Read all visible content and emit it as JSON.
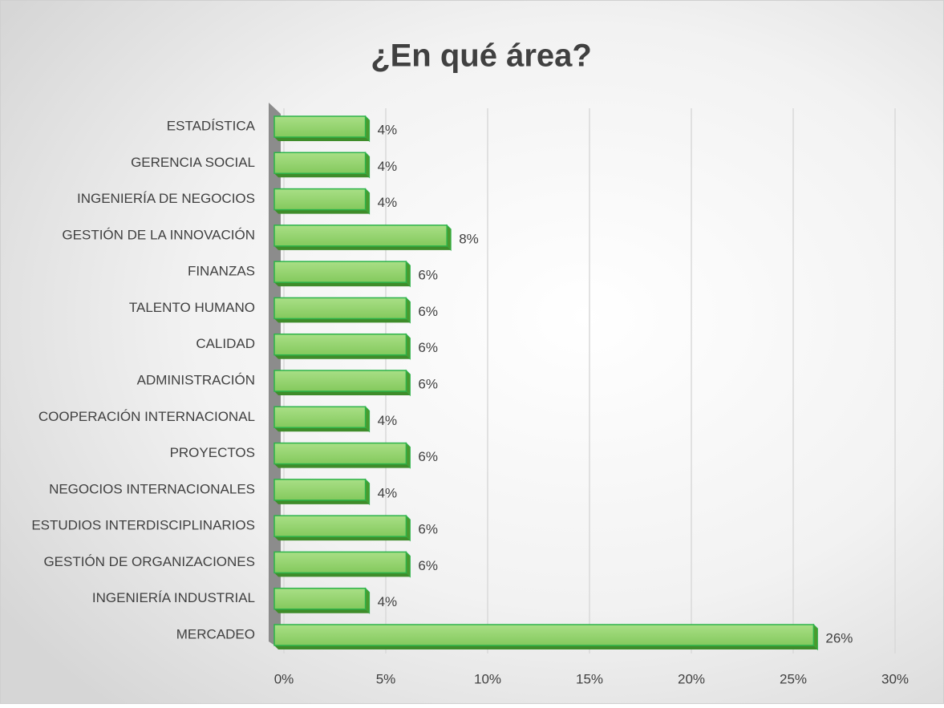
{
  "chart_data": {
    "type": "bar",
    "orientation": "horizontal",
    "title": "¿En qué área?",
    "categories": [
      "ESTADÍSTICA",
      "GERENCIA SOCIAL",
      "INGENIERÍA DE NEGOCIOS",
      "GESTIÓN DE LA INNOVACIÓN",
      "FINANZAS",
      "TALENTO HUMANO",
      "CALIDAD",
      "ADMINISTRACIÓN",
      "COOPERACIÓN INTERNACIONAL",
      "PROYECTOS",
      "NEGOCIOS INTERNACIONALES",
      "ESTUDIOS INTERDISCIPLINARIOS",
      "GESTIÓN DE ORGANIZACIONES",
      "INGENIERÍA INDUSTRIAL",
      "MERCADEO"
    ],
    "values": [
      4,
      4,
      4,
      8,
      6,
      6,
      6,
      6,
      4,
      6,
      4,
      6,
      6,
      4,
      26
    ],
    "value_labels": [
      "4%",
      "4%",
      "4%",
      "8%",
      "6%",
      "6%",
      "6%",
      "6%",
      "4%",
      "6%",
      "4%",
      "6%",
      "6%",
      "4%",
      "26%"
    ],
    "color": "#92d36e",
    "xlim": [
      0,
      30
    ],
    "xticks": [
      {
        "value": 0,
        "label": "0%"
      },
      {
        "value": 5,
        "label": "5%"
      },
      {
        "value": 10,
        "label": "10%"
      },
      {
        "value": 15,
        "label": "15%"
      },
      {
        "value": 20,
        "label": "20%"
      },
      {
        "value": 25,
        "label": "25%"
      },
      {
        "value": 30,
        "label": "30%"
      }
    ],
    "grid": true
  }
}
